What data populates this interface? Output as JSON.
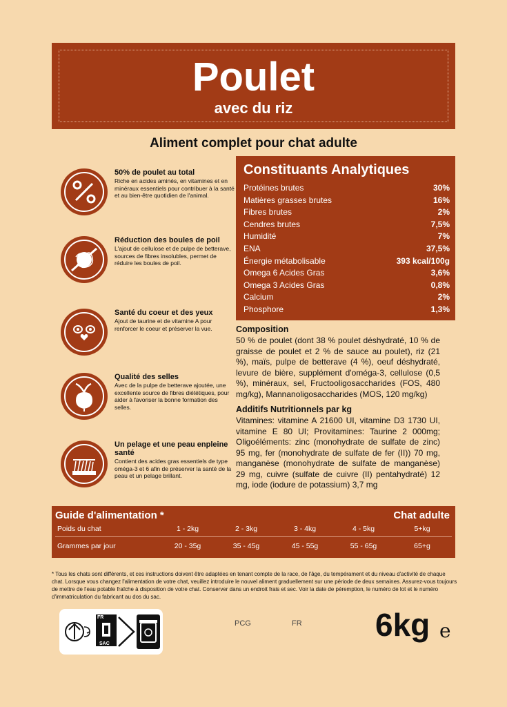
{
  "header": {
    "title": "Poulet",
    "subtitle": "avec du riz",
    "tagline": "Aliment complet pour chat adulte"
  },
  "benefits": [
    {
      "icon": "percent-icon",
      "title": "50% de poulet au total",
      "desc": "Riche en acides aminés, en vitamines et en minéraux essentiels pour contribuer à la santé et au bien-être quotidien de l'animal."
    },
    {
      "icon": "hairball-icon",
      "title": "Réduction des boules de poil",
      "desc": "L'ajout de cellulose et de pulpe de betterave, sources de fibres insolubles, permet de réduire les boules de poil."
    },
    {
      "icon": "cat-eyes-heart-icon",
      "title": "Santé du coeur et des yeux",
      "desc": "Ajout de taurine et de vitamine A pour renforcer le coeur et préserver la vue."
    },
    {
      "icon": "beet-icon",
      "title": "Qualité des selles",
      "desc": "Avec de la pulpe de betterave ajoutée, une excellente source de fibres diététiques, pour aider à favoriser la bonne formation des selles."
    },
    {
      "icon": "fur-skin-icon",
      "title": "Un pelage et une peau enpleine santé",
      "desc": "Contient des acides gras essentiels de type oméga-3 et 6 afin de préserver la santé de la peau et un pelage brillant."
    }
  ],
  "analytic": {
    "title": "Constituants Analytiques",
    "rows": [
      {
        "label": "Protéines brutes",
        "value": "30%"
      },
      {
        "label": "Matières grasses brutes",
        "value": "16%"
      },
      {
        "label": "Fibres brutes",
        "value": "2%"
      },
      {
        "label": "Cendres brutes",
        "value": "7,5%"
      },
      {
        "label": "Humidité",
        "value": "7%"
      },
      {
        "label": "ENA",
        "value": "37,5%"
      },
      {
        "label": "Énergie métabolisable",
        "value": "393 kcal/100g"
      },
      {
        "label": "Omega 6 Acides Gras",
        "value": "3,6%"
      },
      {
        "label": "Omega 3 Acides Gras",
        "value": "0,8%"
      },
      {
        "label": "Calcium",
        "value": "2%"
      },
      {
        "label": "Phosphore",
        "value": "1,3%"
      }
    ]
  },
  "composition": {
    "title": "Composition",
    "text": "50 % de poulet (dont 38 % poulet déshydraté, 10 % de graisse de poulet et 2 % de sauce au poulet), riz (21 %), maïs, pulpe de betterave (4 %), oeuf déshydraté, levure de bière, supplément d'oméga-3, cellulose (0,5 %), minéraux, sel, Fructooligosaccharides (FOS, 480 mg/kg), Mannanoligosaccharides (MOS, 120 mg/kg)"
  },
  "additives": {
    "title": "Additifs Nutritionnels par kg",
    "text": "Vitamines: vitamine A 21600 UI, vitamine D3 1730 UI, vitamine E 80 UI; Provitamines: Taurine 2 000mg; Oligoéléments: zinc (monohydrate de sulfate de zinc) 95 mg, fer (monohydrate de sulfate de fer (II)) 70 mg, manganèse (monohydrate de sulfate de manganèse) 29 mg, cuivre (sulfate de cuivre (II) pentahydraté) 12 mg, iode (iodure de potassium) 3,7 mg"
  },
  "feeding": {
    "title": "Guide d'alimentation *",
    "subtitle": "Chat adulte",
    "row1_label": "Poids du chat",
    "weights": [
      "1 - 2kg",
      "2 - 3kg",
      "3 - 4kg",
      "4 - 5kg",
      "5+kg"
    ],
    "row2_label": "Grammes par jour",
    "grams": [
      "20 - 35g",
      "35 - 45g",
      "45 - 55g",
      "55 - 65g",
      "65+g"
    ]
  },
  "footnote": "* Tous les chats sont différents, et ces instructions doivent être adaptées en tenant compte de la race, de l'âge, du tempérament et du niveau d'activité de chaque chat. Lorsque vous changez l'alimentation de votre chat, veuillez introduire le nouvel aliment graduellement sur une période de deux semaines. Assurez-vous toujours de mettre de l'eau potable fraîche à disposition de votre chat. Conserver dans un endroit frais et sec. Voir la date de péremption, le numéro de lot et le numéro d'immatriculation du fabricant au dos du sac.",
  "bottom": {
    "recycle_fr": "FR",
    "recycle_sac": "SAC",
    "pcg": "PCG",
    "fr": "FR",
    "weight": "6kg",
    "estimate": "e"
  },
  "colors": {
    "rust": "#a23b16",
    "background": "#f7d9ae"
  }
}
